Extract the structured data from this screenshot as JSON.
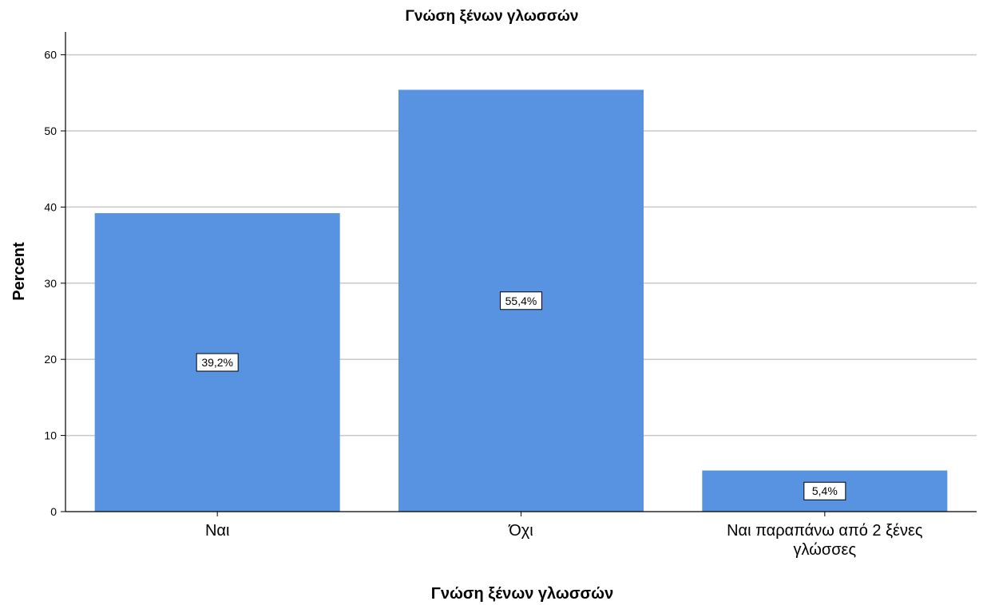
{
  "chart_data": {
    "type": "bar",
    "title": "Γνώση ξένων γλωσσών",
    "xlabel": "Γνώση ξένων γλωσσών",
    "ylabel": "Percent",
    "categories": [
      "Ναι",
      "Όχι",
      "Ναι παραπάνω από 2 ξένες γλώσσες"
    ],
    "category_lines": [
      [
        "Ναι"
      ],
      [
        "Όχι"
      ],
      [
        "Ναι παραπάνω από 2 ξένες",
        "γλώσσες"
      ]
    ],
    "values": [
      39.2,
      55.4,
      5.4
    ],
    "data_labels": [
      "39,2%",
      "55,4%",
      "5,4%"
    ],
    "ylim": [
      0,
      63
    ],
    "yticks": [
      0,
      10,
      20,
      30,
      40,
      50,
      60
    ],
    "grid": true,
    "legend": "none",
    "colors": {
      "bar": "#5893e1",
      "grid": "#c8c8c8",
      "axis": "#000000",
      "label_box_fill": "#ffffff",
      "label_box_stroke": "#000000"
    }
  }
}
